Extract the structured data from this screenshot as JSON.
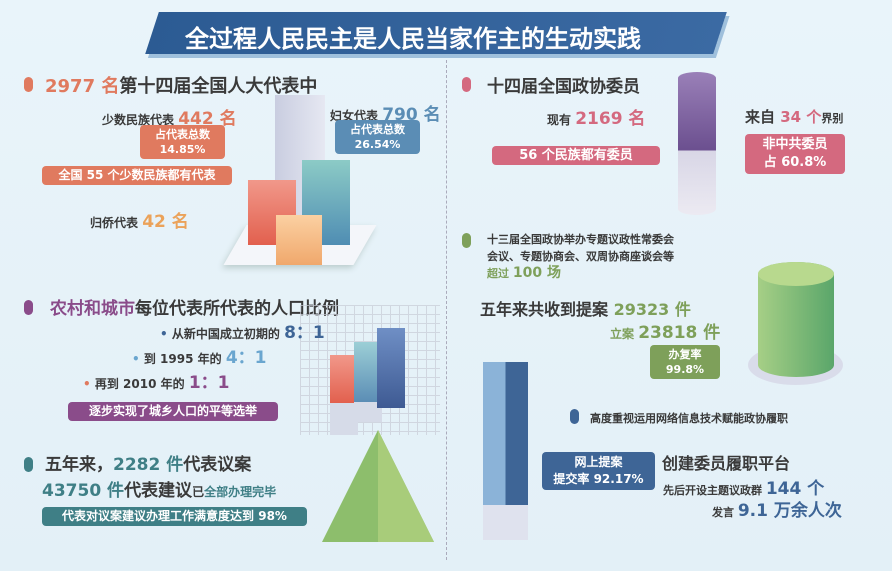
{
  "title": "全过程人民民主是人民当家作主的生动实践",
  "colors": {
    "orange": "#e07a5f",
    "blue": "#5b8db5",
    "purple": "#8a4c8a",
    "teal": "#3f7f86",
    "pink": "#d4697f",
    "green": "#7ea05a",
    "navy": "#3e6596",
    "title_bg": "#2f5a8f"
  },
  "npc": {
    "count": "2977 名",
    "heading": "第十四届全国人大代表中",
    "minority": {
      "label": "少数民族代表",
      "value": "442 名",
      "share_label": "占代表总数",
      "share": "14.85%"
    },
    "all_ethnic": "全国 55 个少数民族都有代表",
    "overseas": {
      "label": "归侨代表",
      "value": "42 名"
    },
    "women": {
      "label": "妇女代表",
      "value": "790 名",
      "share_label": "占代表总数",
      "share": "26.54%"
    }
  },
  "ratio": {
    "highlight": "农村和城市",
    "heading": "每位代表所代表的人口比例",
    "items": [
      {
        "text": "从新中国成立初期的",
        "value": "8：1"
      },
      {
        "text": "到 1995 年的",
        "value": "4：1"
      },
      {
        "text": "再到 2010 年的",
        "value": "1：1"
      }
    ],
    "summary": "逐步实现了城乡人口的平等选举"
  },
  "bills": {
    "prefix": "五年来，",
    "bills_value": "2282 件",
    "bills_label": "代表议案",
    "sugg_value": "43750 件",
    "sugg_label": "代表建议",
    "sugg_suffix1": "已",
    "sugg_suffix2": "全部办理完毕",
    "satisfaction": "代表对议案建议办理工作满意度达到 98%"
  },
  "cppcc": {
    "heading": "十四届全国政协委员",
    "current_label": "现有",
    "current_value": "2169 名",
    "ethnic": "56 个民族都有委员",
    "from_label": "来自",
    "from_value": "34 个",
    "from_suffix": "界别",
    "noncpc_line1": "非中共委员",
    "noncpc_line2": "占 60.8%"
  },
  "meetings": {
    "line1": "十三届全国政协举办专题议政性常委会",
    "line2": "会议、专题协商会、双周协商座谈会等",
    "over_label": "超过",
    "over_value": "100 场"
  },
  "proposals": {
    "label": "五年来共收到提案",
    "value": "29323 件",
    "filed_label": "立案",
    "filed_value": "23818 件",
    "rate_label": "办复率",
    "rate_value": "99.8%"
  },
  "online": {
    "heading": "高度重视运用网络信息技术赋能政协履职",
    "box_line1": "网上提案",
    "box_line2": "提交率 92.17%",
    "platform": "创建委员履职平台",
    "groups_label": "先后开设主题议政群",
    "groups_value": "144 个",
    "speech_label": "发言",
    "speech_value": "9.1 万余人次"
  }
}
